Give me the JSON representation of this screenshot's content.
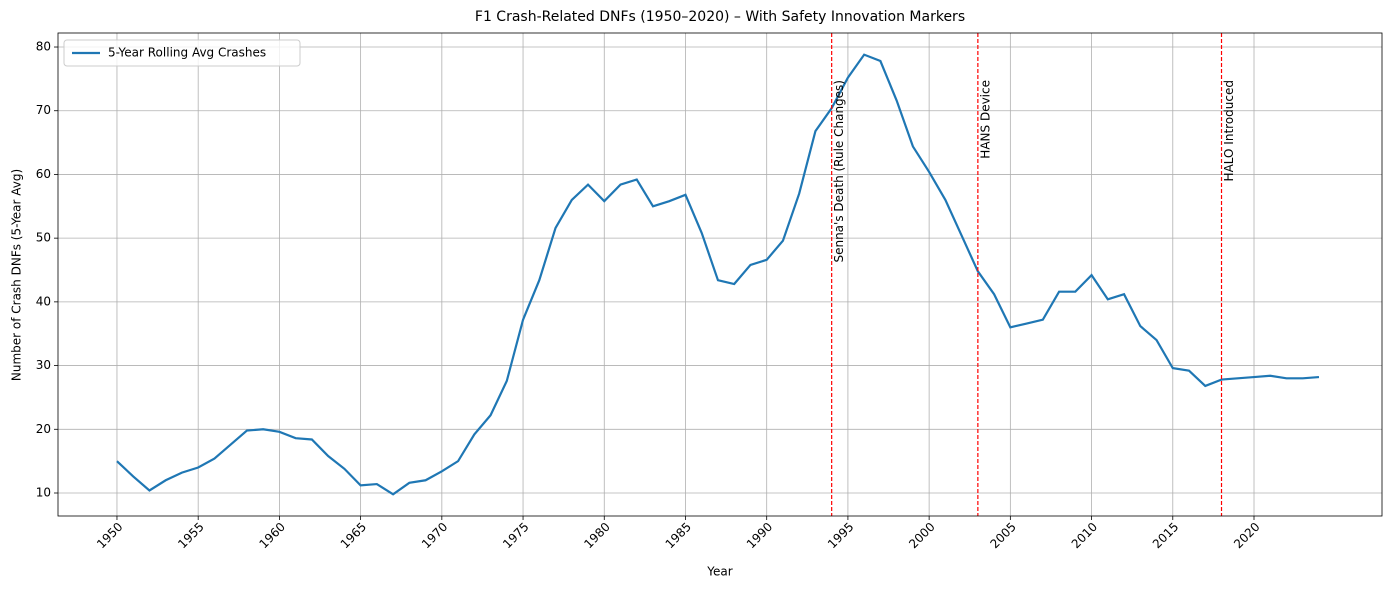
{
  "chart_data": {
    "type": "line",
    "title": "F1 Crash-Related DNFs (1950–2020) – With Safety Innovation Markers",
    "xlabel": "Year",
    "ylabel": "Number of Crash DNFs (5-Year Avg)",
    "x": [
      1950,
      1951,
      1952,
      1953,
      1954,
      1955,
      1956,
      1957,
      1958,
      1959,
      1960,
      1961,
      1962,
      1963,
      1964,
      1965,
      1966,
      1967,
      1968,
      1969,
      1970,
      1971,
      1972,
      1973,
      1974,
      1975,
      1976,
      1977,
      1978,
      1979,
      1980,
      1981,
      1982,
      1983,
      1984,
      1985,
      1986,
      1987,
      1988,
      1989,
      1990,
      1991,
      1992,
      1993,
      1994,
      1995,
      1996,
      1997,
      1998,
      1999,
      2000,
      2001,
      2002,
      2003,
      2004,
      2005,
      2006,
      2007,
      2008,
      2009,
      2010,
      2011,
      2012,
      2013,
      2014,
      2015,
      2016,
      2017,
      2018,
      2019,
      2020,
      2021,
      2022,
      2023,
      2024
    ],
    "series": [
      {
        "name": "5-Year Rolling Avg Crashes",
        "color": "#1f77b4",
        "values": [
          15.0,
          12.6,
          10.4,
          12.0,
          13.2,
          14.0,
          15.4,
          17.6,
          19.8,
          20.0,
          19.6,
          18.6,
          18.4,
          15.8,
          13.8,
          11.2,
          11.4,
          9.8,
          11.6,
          12.0,
          13.4,
          15.0,
          19.2,
          22.2,
          27.6,
          37.2,
          43.4,
          51.6,
          56.0,
          58.4,
          55.8,
          58.4,
          59.2,
          55.0,
          55.8,
          56.8,
          50.8,
          43.4,
          42.8,
          45.8,
          46.6,
          49.6,
          57.0,
          66.8,
          70.4,
          75.2,
          78.8,
          77.8,
          71.6,
          64.4,
          60.4,
          56.0,
          50.4,
          44.8,
          41.2,
          36.0,
          36.6,
          37.2,
          41.6,
          41.6,
          44.2,
          40.4,
          41.2,
          36.2,
          34.0,
          29.6,
          29.2,
          26.8,
          27.8,
          28.0,
          28.2,
          28.4,
          28.0,
          28.0,
          28.2
        ]
      }
    ],
    "xlim": [
      1946.37,
      2027.88
    ],
    "ylim": [
      6.39,
      82.2
    ],
    "xticks": [
      1950,
      1955,
      1960,
      1965,
      1970,
      1975,
      1980,
      1985,
      1990,
      1995,
      2000,
      2005,
      2010,
      2015,
      2020
    ],
    "yticks": [
      10,
      20,
      30,
      40,
      50,
      60,
      70,
      80
    ],
    "grid": true,
    "legend": "upper left",
    "markers": [
      {
        "x": 1994,
        "label": "Senna's Death (Rule Changes)",
        "color": "red"
      },
      {
        "x": 2003,
        "label": "HANS Device",
        "color": "red"
      },
      {
        "x": 2018,
        "label": "HALO Introduced",
        "color": "red"
      }
    ]
  }
}
